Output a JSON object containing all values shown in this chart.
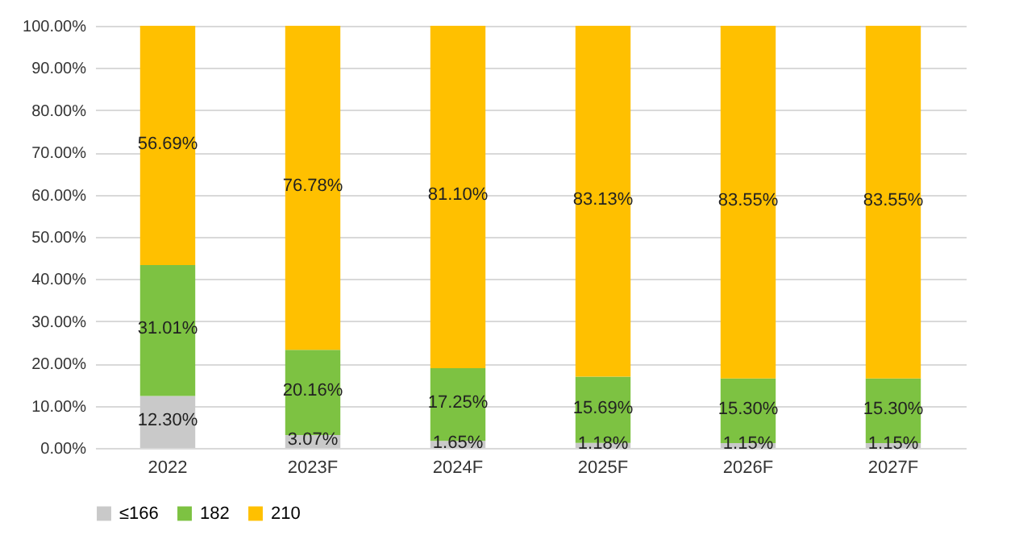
{
  "chart_data": {
    "type": "bar",
    "stacked": true,
    "categories": [
      "2022",
      "2023F",
      "2024F",
      "2025F",
      "2026F",
      "2027F"
    ],
    "series": [
      {
        "name": "≤166",
        "color": "#c9c9c9",
        "values": [
          12.3,
          3.07,
          1.65,
          1.18,
          1.15,
          1.15
        ],
        "value_labels": [
          "12.30%",
          "3.07%",
          "1.65%",
          "1.18%",
          "1.15%",
          "1.15%"
        ]
      },
      {
        "name": "182",
        "color": "#7dc242",
        "values": [
          31.01,
          20.16,
          17.25,
          15.69,
          15.3,
          15.3
        ],
        "value_labels": [
          "31.01%",
          "20.16%",
          "17.25%",
          "15.69%",
          "15.30%",
          "15.30%"
        ]
      },
      {
        "name": "210",
        "color": "#ffc000",
        "values": [
          56.69,
          76.78,
          81.1,
          83.13,
          83.55,
          83.55
        ],
        "value_labels": [
          "56.69%",
          "76.78%",
          "81.10%",
          "83.13%",
          "83.55%",
          "83.55%"
        ]
      }
    ],
    "ylim": [
      0,
      100
    ],
    "yticks": [
      {
        "value": 0,
        "label": "0.00%"
      },
      {
        "value": 10,
        "label": "10.00%"
      },
      {
        "value": 20,
        "label": "20.00%"
      },
      {
        "value": 30,
        "label": "30.00%"
      },
      {
        "value": 40,
        "label": "40.00%"
      },
      {
        "value": 50,
        "label": "50.00%"
      },
      {
        "value": 60,
        "label": "60.00%"
      },
      {
        "value": 70,
        "label": "70.00%"
      },
      {
        "value": 80,
        "label": "80.00%"
      },
      {
        "value": 90,
        "label": "90.00%"
      },
      {
        "value": 100,
        "label": "100.00%"
      }
    ],
    "grid": "y",
    "legend": "bottom"
  }
}
